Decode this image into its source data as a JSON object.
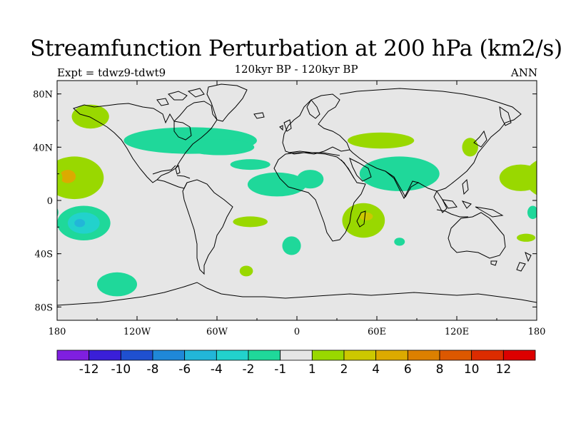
{
  "title": "Streamfunction Perturbation at 200 hPa (km2/s)",
  "subtitle": "120kyr BP - 120kyr BP",
  "left_label": "Expt = tdwz9-tdwt9",
  "right_label": "ANN",
  "lon_ticks": [
    "180",
    "120W",
    "60W",
    "0",
    "60E",
    "120E",
    "180"
  ],
  "lat_ticks": [
    "80N",
    "40N",
    "0",
    "40S",
    "80S"
  ],
  "colorbar": {
    "colors": [
      "#7f1fe0",
      "#3a1fd8",
      "#1f50d0",
      "#1f88d8",
      "#22b6d8",
      "#22d2cc",
      "#1fd89a",
      "#e6e6e6",
      "#99d800",
      "#ccc800",
      "#dcaa00",
      "#dc8000",
      "#dc5800",
      "#dc2c00",
      "#dc0000"
    ],
    "labels": [
      "-12",
      "-10",
      "-8",
      "-6",
      "-4",
      "-2",
      "-1",
      "1",
      "2",
      "4",
      "6",
      "8",
      "10",
      "12"
    ]
  },
  "map": {
    "background_color": "#e6e6e6",
    "coastline_color": "#000000",
    "anomalies": [
      {
        "lon": -155,
        "lat": 63,
        "rx": 14,
        "ry": 9,
        "color": "#99d800"
      },
      {
        "lon": -80,
        "lat": 45,
        "rx": 50,
        "ry": 10,
        "color": "#1fd89a"
      },
      {
        "lon": -58,
        "lat": 40,
        "rx": 26,
        "ry": 6,
        "color": "#1fd89a"
      },
      {
        "lon": -35,
        "lat": 27,
        "rx": 15,
        "ry": 4,
        "color": "#1fd89a"
      },
      {
        "lon": -15,
        "lat": 12,
        "rx": 22,
        "ry": 9,
        "color": "#1fd89a"
      },
      {
        "lon": 10,
        "lat": 16,
        "rx": 10,
        "ry": 7,
        "color": "#1fd89a"
      },
      {
        "lon": -167,
        "lat": 17,
        "rx": 22,
        "ry": 16,
        "color": "#99d800"
      },
      {
        "lon": -172,
        "lat": 18,
        "rx": 6,
        "ry": 5,
        "color": "#dcaa00"
      },
      {
        "lon": -160,
        "lat": -17,
        "rx": 20,
        "ry": 13,
        "color": "#1fd89a"
      },
      {
        "lon": -160,
        "lat": -17,
        "rx": 12,
        "ry": 8,
        "color": "#22d2cc"
      },
      {
        "lon": -163,
        "lat": -17,
        "rx": 4,
        "ry": 3,
        "color": "#22b6d8"
      },
      {
        "lon": -35,
        "lat": -16,
        "rx": 13,
        "ry": 4,
        "color": "#99d800"
      },
      {
        "lon": -4,
        "lat": -34,
        "rx": 7,
        "ry": 7,
        "color": "#1fd89a"
      },
      {
        "lon": -38,
        "lat": -53,
        "rx": 5,
        "ry": 4,
        "color": "#99d800"
      },
      {
        "lon": -135,
        "lat": -63,
        "rx": 15,
        "ry": 9,
        "color": "#1fd89a"
      },
      {
        "lon": 63,
        "lat": 45,
        "rx": 25,
        "ry": 6,
        "color": "#99d800"
      },
      {
        "lon": 130,
        "lat": 40,
        "rx": 6,
        "ry": 7,
        "color": "#99d800"
      },
      {
        "lon": 77,
        "lat": 20,
        "rx": 30,
        "ry": 13,
        "color": "#1fd89a"
      },
      {
        "lon": 50,
        "lat": -15,
        "rx": 16,
        "ry": 13,
        "color": "#99d800"
      },
      {
        "lon": 52,
        "lat": -12,
        "rx": 5,
        "ry": 3,
        "color": "#ccc800"
      },
      {
        "lon": 77,
        "lat": -31,
        "rx": 4,
        "ry": 3,
        "color": "#1fd89a"
      },
      {
        "lon": 168,
        "lat": 17,
        "rx": 16,
        "ry": 10,
        "color": "#99d800"
      },
      {
        "lon": 177,
        "lat": -9,
        "rx": 4,
        "ry": 5,
        "color": "#1fd89a"
      },
      {
        "lon": 172,
        "lat": -28,
        "rx": 7,
        "ry": 3,
        "color": "#99d800"
      }
    ]
  }
}
